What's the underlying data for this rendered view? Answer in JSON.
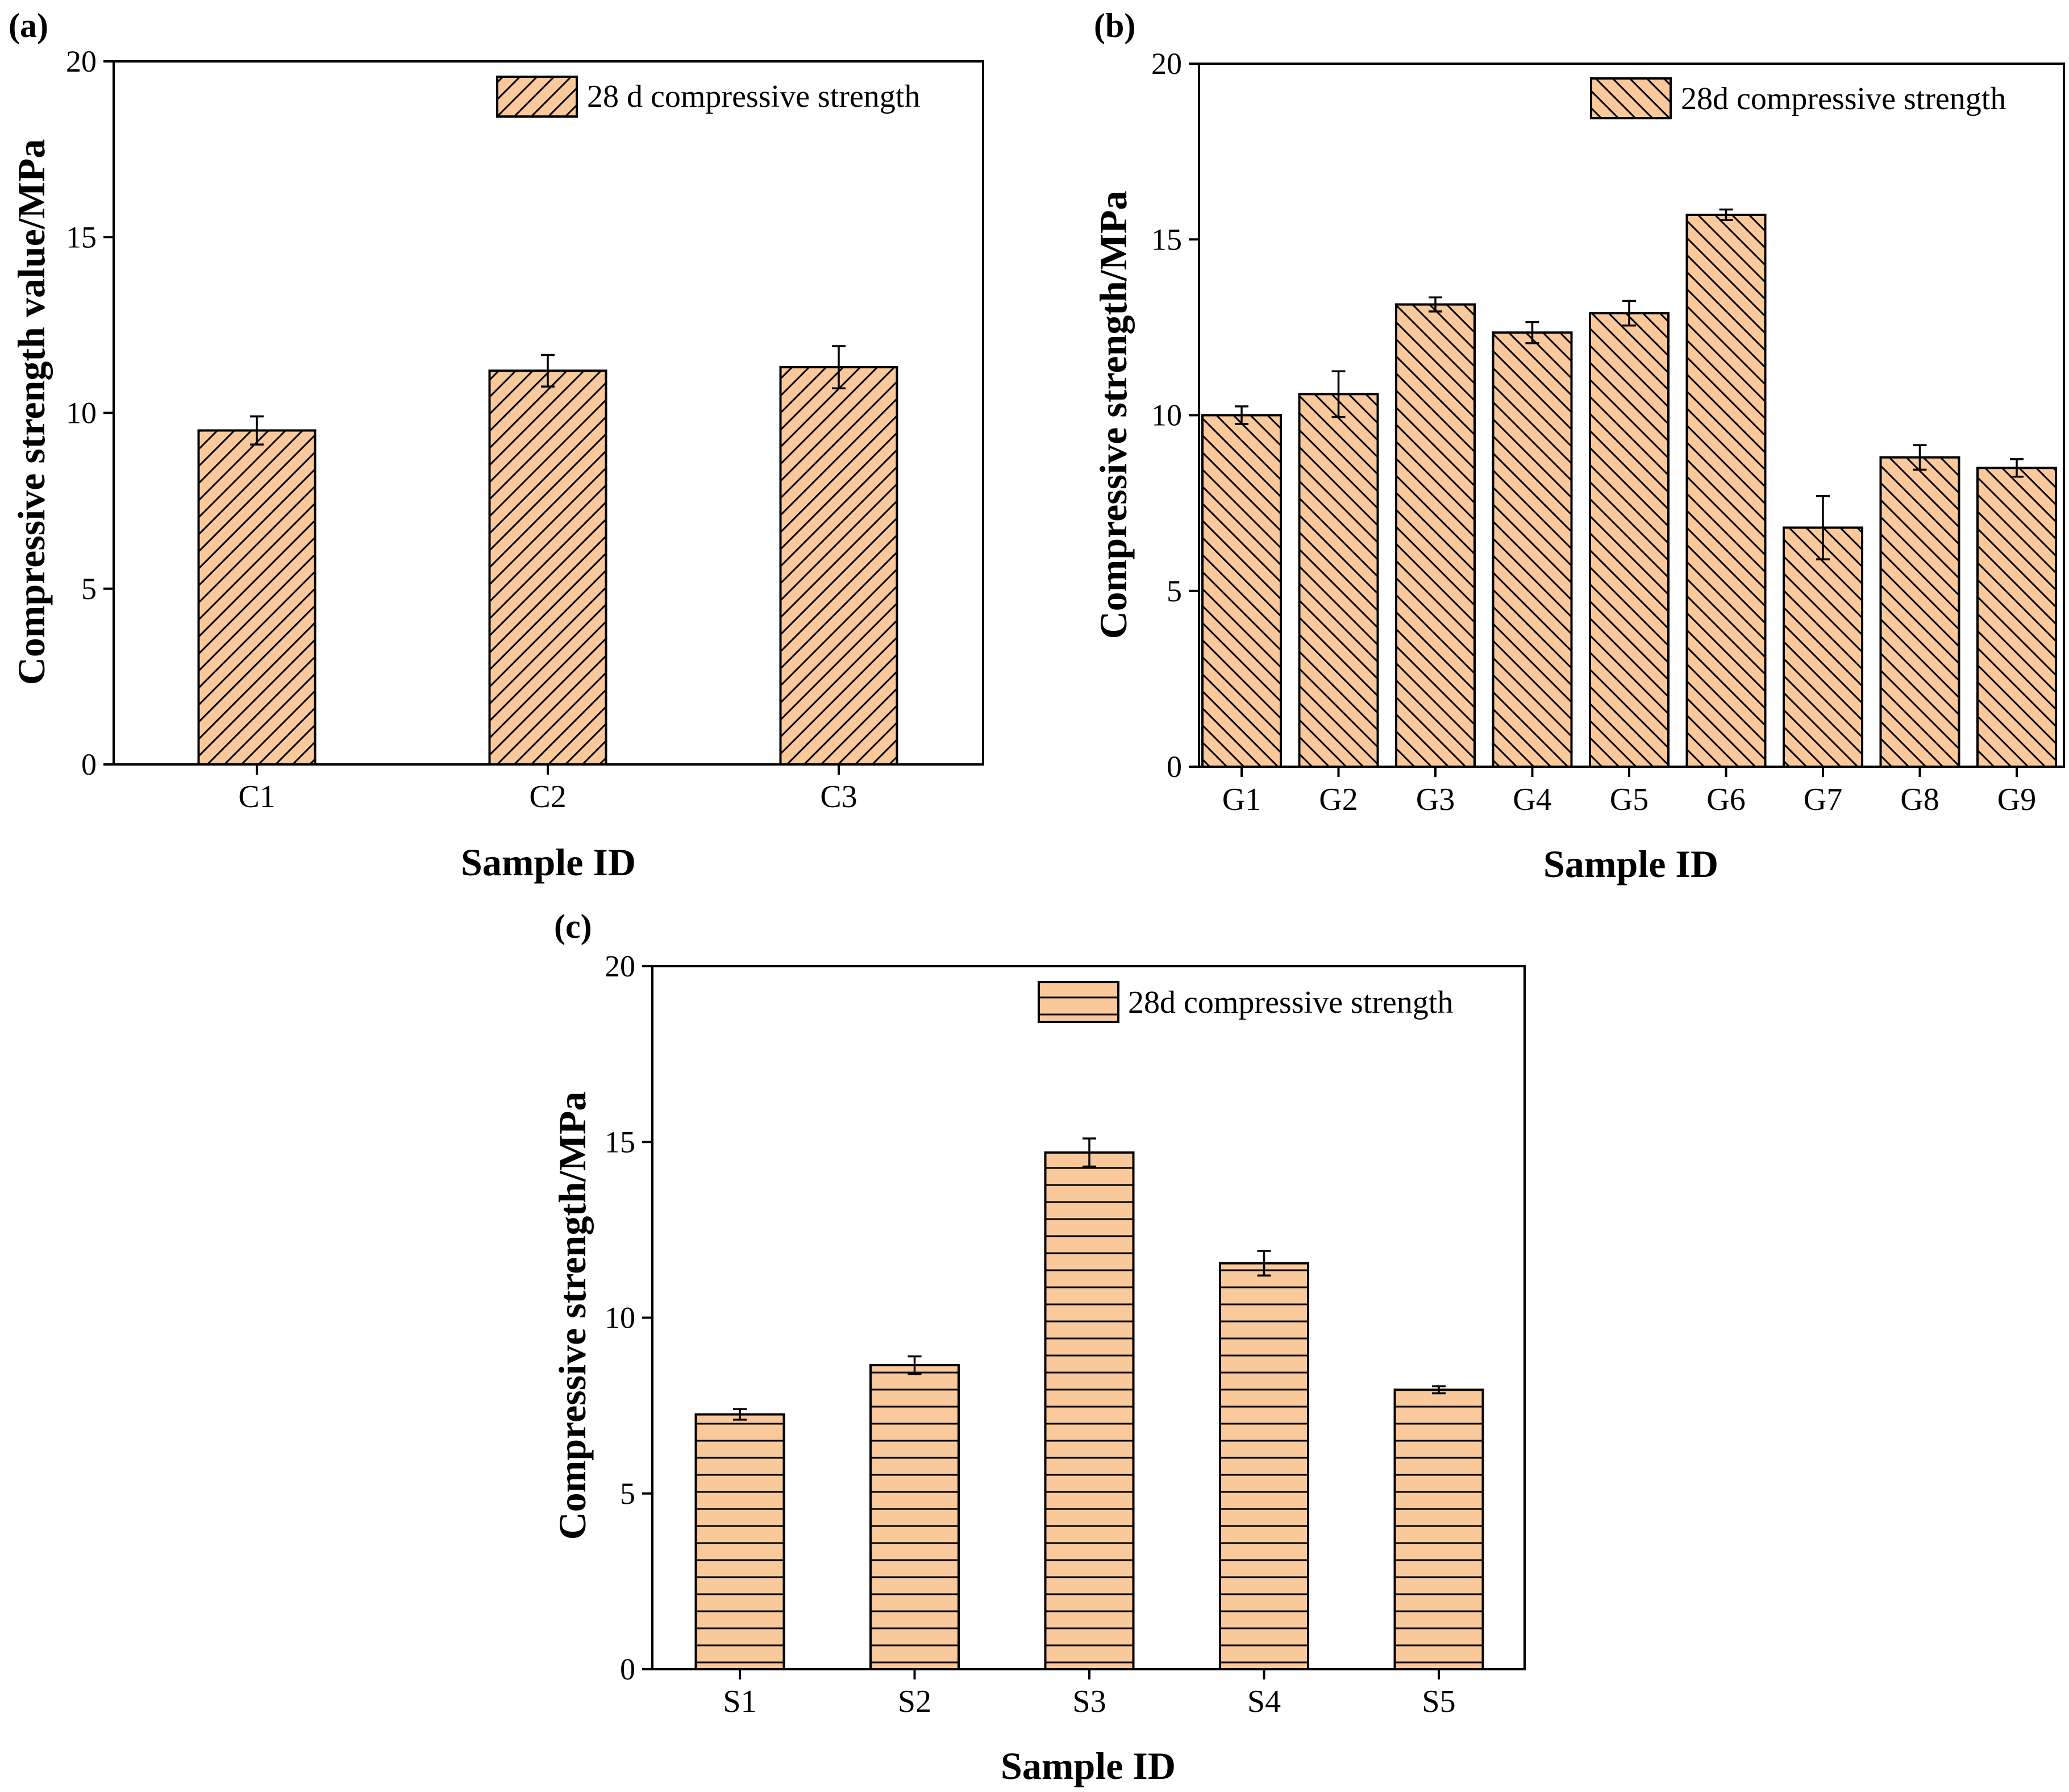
{
  "chart_data": [
    {
      "type": "bar",
      "panel_label": "(a)",
      "categories": [
        "C1",
        "C2",
        "C3"
      ],
      "series": [
        {
          "name": "28 d compressive strength",
          "values": [
            9.5,
            11.2,
            11.3
          ],
          "errors": [
            0.4,
            0.45,
            0.6
          ]
        }
      ],
      "xlabel": "Sample ID",
      "ylabel": "Compressive strength value/MPa",
      "ylim": [
        0,
        20
      ],
      "yticks": [
        0,
        5,
        10,
        15,
        20
      ],
      "legend_position": "top-right",
      "hatch": "diagonal-up",
      "fill_color": "#f9c99b"
    },
    {
      "type": "bar",
      "panel_label": "(b)",
      "categories": [
        "G1",
        "G2",
        "G3",
        "G4",
        "G5",
        "G6",
        "G7",
        "G8",
        "G9"
      ],
      "series": [
        {
          "name": "28d compressive strength",
          "values": [
            10.0,
            10.6,
            13.15,
            12.35,
            12.9,
            15.7,
            6.8,
            8.8,
            8.5
          ],
          "errors": [
            0.25,
            0.65,
            0.2,
            0.3,
            0.35,
            0.15,
            0.9,
            0.35,
            0.25
          ]
        }
      ],
      "xlabel": "Sample ID",
      "ylabel": "Compressive strength/MPa",
      "ylim": [
        0,
        20
      ],
      "yticks": [
        0,
        5,
        10,
        15,
        20
      ],
      "legend_position": "top-right",
      "hatch": "diagonal-down",
      "fill_color": "#f9c99b"
    },
    {
      "type": "bar",
      "panel_label": "(c)",
      "categories": [
        "S1",
        "S2",
        "S3",
        "S4",
        "S5"
      ],
      "series": [
        {
          "name": "28d compressive strength",
          "values": [
            7.25,
            8.65,
            14.7,
            11.55,
            7.95
          ],
          "errors": [
            0.15,
            0.25,
            0.4,
            0.35,
            0.1
          ]
        }
      ],
      "xlabel": "Sample ID",
      "ylabel": "Compressive strength/MPa",
      "ylim": [
        0,
        20
      ],
      "yticks": [
        0,
        5,
        10,
        15,
        20
      ],
      "legend_position": "top-right",
      "hatch": "horizontal",
      "fill_color": "#f9c99b"
    }
  ]
}
